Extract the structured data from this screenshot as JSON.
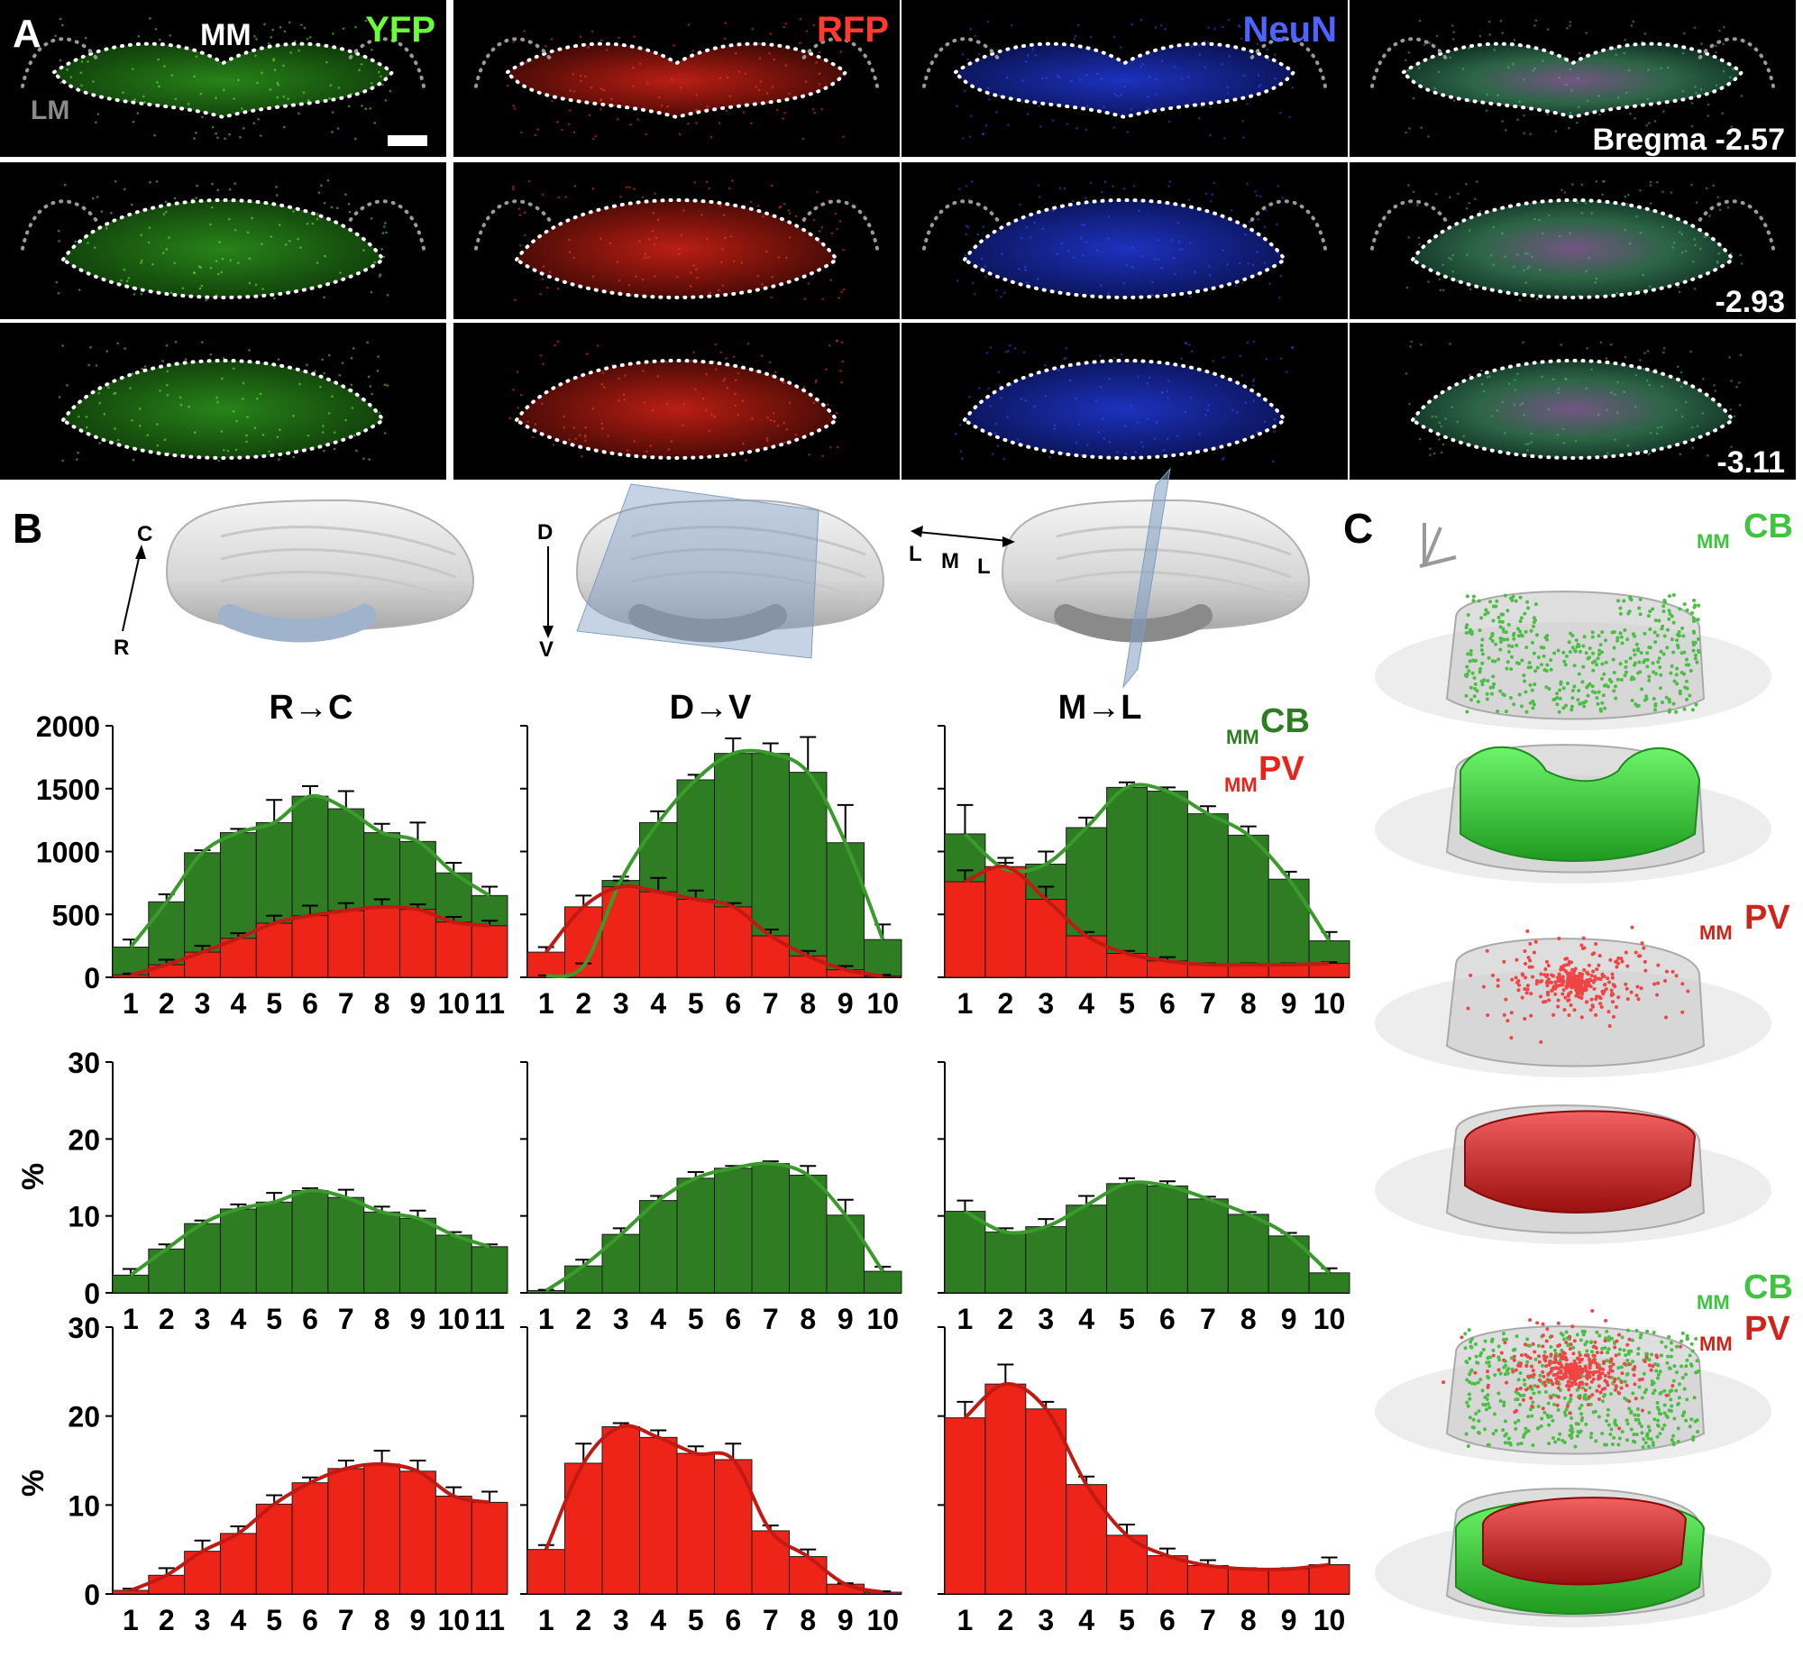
{
  "panel_labels": {
    "a": "A",
    "b": "B",
    "c": "C"
  },
  "panel_a": {
    "channels": [
      {
        "name": "YFP",
        "color": "#6bff3a"
      },
      {
        "name": "RFP",
        "color": "#ff3b2f"
      },
      {
        "name": "NeuN",
        "color": "#4f63ff"
      },
      {
        "name": "",
        "color": "#ffffff"
      }
    ],
    "region_labels": {
      "mm": "MM",
      "lm": "LM"
    },
    "bregma": [
      "Bregma -2.57",
      "-2.93",
      "-3.11"
    ]
  },
  "panel_b": {
    "orientation": {
      "rc": {
        "a": "C",
        "b": "R"
      },
      "dv": {
        "a": "D",
        "b": "V"
      },
      "ml": {
        "a": "L",
        "b": "M",
        "c": "L"
      }
    },
    "axis_titles": [
      "R→C",
      "D→V",
      "M→L"
    ],
    "legend": [
      {
        "sub": "MM",
        "main": "CB",
        "color": "#2e7d22"
      },
      {
        "sub": "MM",
        "main": "PV",
        "color": "#e8231b"
      }
    ],
    "ylabel_percent": "%"
  },
  "panel_c": {
    "labels": [
      {
        "sub": "MM",
        "main": "CB",
        "color": "#3fc43f"
      },
      {
        "sub": "MM",
        "main": "PV",
        "color": "#d0241a"
      },
      {
        "sub": "MM",
        "main": "CB",
        "color": "#3fc43f"
      },
      {
        "sub": "MM",
        "main": "PV",
        "color": "#d0241a"
      }
    ]
  },
  "chart_data": [
    {
      "type": "bar",
      "panel": "B row1 R→C",
      "categories": [
        "1",
        "2",
        "3",
        "4",
        "5",
        "6",
        "7",
        "8",
        "9",
        "10",
        "11"
      ],
      "ylim": [
        0,
        2000
      ],
      "yticks": [
        "0",
        "500",
        "1000",
        "1500",
        "2000"
      ],
      "series": [
        {
          "name": "CB",
          "values": [
            240,
            600,
            990,
            1150,
            1230,
            1440,
            1340,
            1150,
            1080,
            830,
            650
          ],
          "err": [
            60,
            60,
            20,
            30,
            180,
            80,
            140,
            70,
            150,
            80,
            70
          ]
        },
        {
          "name": "PV",
          "values": [
            20,
            100,
            200,
            310,
            430,
            490,
            530,
            560,
            540,
            440,
            410
          ],
          "err": [
            10,
            40,
            50,
            40,
            60,
            80,
            60,
            60,
            40,
            40,
            40
          ]
        }
      ]
    },
    {
      "type": "bar",
      "panel": "B row1 D→V",
      "categories": [
        "1",
        "2",
        "3",
        "4",
        "5",
        "6",
        "7",
        "8",
        "9",
        "10"
      ],
      "ylim": [
        0,
        2000
      ],
      "yticks": [],
      "series": [
        {
          "name": "CB",
          "values": [
            10,
            90,
            770,
            1230,
            1570,
            1780,
            1780,
            1630,
            1070,
            300
          ],
          "err": [
            5,
            20,
            30,
            90,
            40,
            120,
            80,
            280,
            300,
            120
          ]
        },
        {
          "name": "PV",
          "values": [
            200,
            560,
            720,
            680,
            620,
            560,
            330,
            170,
            60,
            10
          ],
          "err": [
            40,
            90,
            50,
            110,
            70,
            30,
            50,
            40,
            30,
            10
          ]
        }
      ]
    },
    {
      "type": "bar",
      "panel": "B row1 M→L",
      "categories": [
        "1",
        "2",
        "3",
        "4",
        "5",
        "6",
        "7",
        "8",
        "9",
        "10"
      ],
      "ylim": [
        0,
        2000
      ],
      "yticks": [],
      "series": [
        {
          "name": "CB",
          "values": [
            1140,
            860,
            900,
            1190,
            1510,
            1480,
            1300,
            1130,
            780,
            290
          ],
          "err": [
            230,
            50,
            100,
            80,
            40,
            30,
            60,
            70,
            60,
            70
          ]
        },
        {
          "name": "PV",
          "values": [
            760,
            880,
            620,
            330,
            190,
            130,
            100,
            100,
            100,
            110
          ],
          "err": [
            90,
            70,
            100,
            30,
            20,
            30,
            10,
            10,
            10,
            10
          ]
        }
      ]
    },
    {
      "type": "bar",
      "panel": "B row2 R→C",
      "ylabel": "%",
      "categories": [
        "1",
        "2",
        "3",
        "4",
        "5",
        "6",
        "7",
        "8",
        "9",
        "10",
        "11"
      ],
      "ylim": [
        0,
        30
      ],
      "yticks": [
        "0",
        "10",
        "20",
        "30"
      ],
      "series": [
        {
          "name": "CB",
          "values": [
            2.3,
            5.7,
            9.0,
            10.9,
            11.8,
            13.3,
            12.4,
            10.5,
            9.7,
            7.5,
            6.0
          ],
          "err": [
            0.8,
            0.6,
            0.4,
            0.6,
            1.2,
            0.3,
            1.0,
            0.7,
            1.0,
            0.4,
            0.3
          ]
        }
      ]
    },
    {
      "type": "bar",
      "panel": "B row2 D→V",
      "categories": [
        "1",
        "2",
        "3",
        "4",
        "5",
        "6",
        "7",
        "8",
        "9",
        "10"
      ],
      "ylim": [
        0,
        30
      ],
      "yticks": [],
      "series": [
        {
          "name": "CB",
          "values": [
            0.3,
            3.5,
            7.6,
            12.0,
            14.9,
            16.2,
            16.8,
            15.3,
            10.1,
            2.8
          ],
          "err": [
            0.1,
            0.8,
            0.8,
            0.6,
            0.8,
            0.3,
            0.3,
            1.2,
            2.0,
            0.6
          ]
        }
      ]
    },
    {
      "type": "bar",
      "panel": "B row2 M→L",
      "categories": [
        "1",
        "2",
        "3",
        "4",
        "5",
        "6",
        "7",
        "8",
        "9",
        "10"
      ],
      "ylim": [
        0,
        30
      ],
      "yticks": [],
      "series": [
        {
          "name": "CB",
          "values": [
            10.6,
            7.9,
            8.6,
            11.4,
            14.2,
            13.9,
            12.2,
            10.2,
            7.4,
            2.6
          ],
          "err": [
            1.4,
            0.5,
            1.0,
            1.2,
            0.7,
            0.6,
            0.3,
            0.3,
            0.4,
            0.6
          ]
        }
      ]
    },
    {
      "type": "bar",
      "panel": "B row3 R→C",
      "ylabel": "%",
      "categories": [
        "1",
        "2",
        "3",
        "4",
        "5",
        "6",
        "7",
        "8",
        "9",
        "10",
        "11"
      ],
      "ylim": [
        0,
        30
      ],
      "yticks": [
        "0",
        "10",
        "20",
        "30"
      ],
      "series": [
        {
          "name": "PV",
          "values": [
            0.4,
            2.1,
            4.8,
            6.8,
            10.1,
            12.5,
            14.1,
            14.6,
            13.8,
            11.0,
            10.3
          ],
          "err": [
            0.2,
            0.8,
            1.2,
            0.8,
            1.0,
            0.6,
            0.9,
            1.5,
            1.2,
            1.0,
            1.2
          ]
        }
      ]
    },
    {
      "type": "bar",
      "panel": "B row3 D→V",
      "categories": [
        "1",
        "2",
        "3",
        "4",
        "5",
        "6",
        "7",
        "8",
        "9",
        "10"
      ],
      "ylim": [
        0,
        30
      ],
      "yticks": [],
      "series": [
        {
          "name": "PV",
          "values": [
            5.0,
            14.7,
            18.8,
            17.6,
            15.8,
            15.1,
            7.1,
            4.2,
            1.1,
            0.2
          ],
          "err": [
            0.5,
            2.2,
            0.4,
            0.8,
            0.8,
            1.8,
            0.6,
            0.8,
            0.1,
            0.1
          ]
        }
      ]
    },
    {
      "type": "bar",
      "panel": "B row3 M→L",
      "categories": [
        "1",
        "2",
        "3",
        "4",
        "5",
        "6",
        "7",
        "8",
        "9",
        "10"
      ],
      "ylim": [
        0,
        30
      ],
      "yticks": [],
      "series": [
        {
          "name": "PV",
          "values": [
            19.8,
            23.6,
            20.8,
            12.3,
            6.6,
            4.3,
            3.2,
            2.8,
            2.8,
            3.3
          ],
          "err": [
            1.8,
            2.2,
            0.8,
            0.9,
            1.2,
            0.8,
            0.6,
            0.1,
            0.1,
            0.8
          ]
        }
      ]
    }
  ]
}
